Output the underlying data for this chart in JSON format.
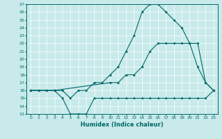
{
  "xlabel": "Humidex (Indice chaleur)",
  "background_color": "#c8eaea",
  "line_color": "#006868",
  "xlim": [
    -0.5,
    23.5
  ],
  "ylim": [
    13,
    27
  ],
  "yticks": [
    13,
    14,
    15,
    16,
    17,
    18,
    19,
    20,
    21,
    22,
    23,
    24,
    25,
    26,
    27
  ],
  "xticks": [
    0,
    1,
    2,
    3,
    4,
    5,
    6,
    7,
    8,
    9,
    10,
    11,
    12,
    13,
    14,
    15,
    16,
    17,
    18,
    19,
    20,
    21,
    22,
    23
  ],
  "line1_x": [
    0,
    1,
    2,
    3,
    4,
    5,
    6,
    7,
    8,
    9,
    10,
    11,
    12,
    13,
    14,
    15,
    16,
    17,
    18,
    19,
    20,
    21,
    22,
    23
  ],
  "line1_y": [
    16,
    16,
    16,
    16,
    15,
    13,
    13,
    13,
    15,
    15,
    15,
    15,
    15,
    15,
    15,
    15,
    15,
    15,
    15,
    15,
    15,
    15,
    15,
    16
  ],
  "line2_x": [
    0,
    1,
    2,
    3,
    4,
    5,
    6,
    7,
    8,
    9,
    10,
    11,
    12,
    13,
    14,
    15,
    16,
    17,
    18,
    19,
    20,
    21,
    22,
    23
  ],
  "line2_y": [
    16,
    16,
    16,
    16,
    16,
    15,
    16,
    16,
    17,
    17,
    18,
    19,
    21,
    23,
    26,
    27,
    27,
    26,
    25,
    24,
    22,
    19,
    17,
    16
  ],
  "line3_x": [
    0,
    3,
    10,
    11,
    12,
    13,
    14,
    15,
    16,
    17,
    18,
    19,
    20,
    21,
    22,
    23
  ],
  "line3_y": [
    16,
    16,
    17,
    17,
    18,
    18,
    19,
    21,
    22,
    22,
    22,
    22,
    22,
    22,
    17,
    16
  ]
}
